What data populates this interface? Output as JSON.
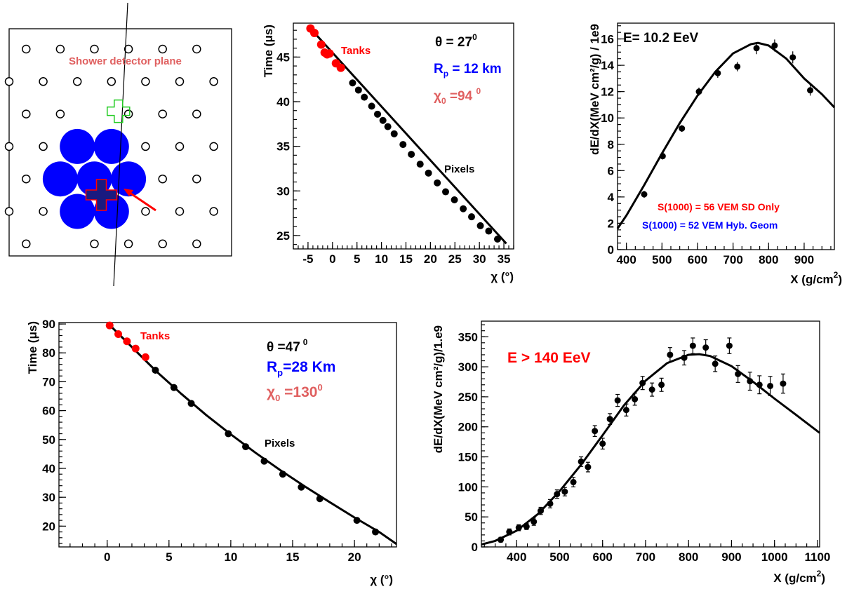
{
  "colors": {
    "tank": "#ff0000",
    "blue": "#0000ff",
    "salmon": "#e06060",
    "green": "#22cc22",
    "black": "#000000"
  },
  "chart_data": [
    {
      "type": "diagram",
      "label_plane": "Shower detector plane",
      "tanks_open": [
        [
          1,
          0
        ],
        [
          3,
          0
        ],
        [
          5,
          0
        ],
        [
          7,
          0
        ],
        [
          9,
          0
        ],
        [
          11,
          0
        ],
        [
          0,
          1
        ],
        [
          2,
          1
        ],
        [
          4,
          1
        ],
        [
          6,
          1
        ],
        [
          8,
          1
        ],
        [
          10,
          1
        ],
        [
          12,
          1
        ],
        [
          -1,
          2
        ],
        [
          1,
          2
        ],
        [
          3,
          2
        ],
        [
          7,
          2
        ],
        [
          9,
          2
        ],
        [
          11,
          2
        ],
        [
          0,
          3
        ],
        [
          2,
          3
        ],
        [
          8,
          3
        ],
        [
          10,
          3
        ],
        [
          12,
          3
        ],
        [
          -1,
          4
        ],
        [
          1,
          4
        ],
        [
          9,
          4
        ],
        [
          11,
          4
        ],
        [
          0,
          5
        ],
        [
          2,
          5
        ],
        [
          8,
          5
        ],
        [
          10,
          5
        ],
        [
          12,
          5
        ],
        [
          -1,
          6
        ],
        [
          1,
          6
        ],
        [
          5,
          6
        ],
        [
          7,
          6
        ],
        [
          9,
          6
        ],
        [
          11,
          6
        ]
      ],
      "tanks_hit": [
        [
          4,
          3
        ],
        [
          6,
          3
        ],
        [
          3,
          4
        ],
        [
          5,
          4
        ],
        [
          7,
          4
        ],
        [
          4,
          5
        ],
        [
          6,
          5
        ]
      ],
      "cross_green": [
        6,
        2
      ],
      "cross_core": [
        5,
        4.6
      ]
    },
    {
      "type": "scatter",
      "xlabel": "χ (°)",
      "ylabel": "Time (μs)",
      "xlim": [
        -8,
        37
      ],
      "ylim": [
        23.5,
        48.8
      ],
      "xticks": [
        -5,
        0,
        5,
        10,
        15,
        20,
        25,
        30,
        35
      ],
      "yticks": [
        25,
        30,
        35,
        40,
        45
      ],
      "series_tanks": {
        "name": "Tanks",
        "x": [
          -4.5,
          -3.7,
          -2.3,
          -1.6,
          -1.1,
          -0.6,
          0.7,
          1.7
        ],
        "y": [
          48.2,
          47.7,
          46.4,
          45.5,
          45.3,
          45.4,
          44.3,
          43.8
        ]
      },
      "series_pixels": {
        "name": "Pixels",
        "x": [
          4.1,
          5.3,
          6.5,
          8.0,
          9.2,
          10.3,
          11.3,
          12.6,
          14.4,
          16.1,
          17.9,
          19.6,
          21.4,
          23.1,
          24.9,
          26.7,
          28.4,
          30.2,
          31.9,
          33.7
        ],
        "y": [
          42.1,
          41.3,
          40.5,
          39.5,
          38.6,
          37.9,
          37.2,
          36.4,
          35.2,
          34.1,
          33.0,
          32.0,
          30.9,
          29.9,
          29.0,
          28.0,
          27.1,
          26.1,
          25.5,
          24.6
        ]
      },
      "fit": {
        "x": [
          -5,
          35.5
        ],
        "y": [
          48.5,
          24.1
        ]
      },
      "annotations": {
        "theta": "θ = 27",
        "theta_sup": "0",
        "rp": "R",
        "rp_sub": "p",
        "rp_val": " = 12 km",
        "chi": "χ",
        "chi_sub": "0",
        "chi_val": " =94 ",
        "chi_sup": "0"
      }
    },
    {
      "type": "scatter",
      "xlabel": "X (g/cm",
      "xlabel_sup": "2",
      "xlabel_end": ")",
      "ylabel": "dE/dX(MeV cm²/g) / 1e9",
      "xlim": [
        375,
        985
      ],
      "ylim": [
        0,
        17.2
      ],
      "xticks": [
        400,
        500,
        600,
        700,
        800,
        900
      ],
      "yticks": [
        0,
        2,
        4,
        6,
        8,
        10,
        12,
        14,
        16
      ],
      "x": [
        450,
        502,
        556,
        604,
        657,
        712,
        766,
        817,
        868,
        917
      ],
      "y": [
        4.2,
        7.1,
        9.2,
        12.0,
        13.4,
        13.9,
        15.3,
        15.5,
        14.6,
        12.1
      ],
      "yerr": [
        0.15,
        0.15,
        0.15,
        0.2,
        0.25,
        0.25,
        0.35,
        0.35,
        0.35,
        0.3
      ],
      "fit": {
        "x": [
          375,
          400,
          450,
          500,
          550,
          600,
          650,
          700,
          750,
          770,
          800,
          850,
          900,
          950,
          985
        ],
        "y": [
          1.6,
          2.6,
          4.9,
          7.3,
          9.6,
          11.7,
          13.5,
          14.9,
          15.6,
          15.7,
          15.5,
          14.5,
          13.0,
          11.8,
          10.8
        ]
      },
      "title": "E= 10.2 EeV",
      "note1": "S(1000) = 56 VEM  SD Only",
      "note2": "S(1000) = 52 VEM Hyb. Geom"
    },
    {
      "type": "scatter",
      "xlabel": "χ (°)",
      "ylabel": "Time (μs)",
      "xlim": [
        -3.9,
        23.4
      ],
      "ylim": [
        12.8,
        90.5
      ],
      "xticks": [
        0,
        5,
        10,
        15,
        20
      ],
      "yticks": [
        20,
        30,
        40,
        50,
        60,
        70,
        80,
        90
      ],
      "series_tanks": {
        "name": "Tanks",
        "x": [
          0.2,
          0.9,
          1.6,
          2.3,
          3.1
        ],
        "y": [
          89.5,
          86.5,
          84.0,
          81.5,
          78.5
        ]
      },
      "series_pixels": {
        "name": "Pixels",
        "x": [
          3.9,
          5.4,
          6.8,
          9.8,
          11.2,
          12.7,
          14.2,
          15.7,
          17.2,
          20.2,
          21.7
        ],
        "y": [
          74.0,
          68.0,
          62.5,
          52.0,
          47.5,
          42.5,
          38.0,
          33.5,
          29.5,
          22.0,
          18.0
        ]
      },
      "fit": {
        "x": [
          0,
          2,
          4,
          6,
          8,
          10,
          12,
          14,
          16,
          18,
          20,
          22,
          23.4
        ],
        "y": [
          90.5,
          82.0,
          73.5,
          65.8,
          58.5,
          51.8,
          45.4,
          39.4,
          33.7,
          28.3,
          23.0,
          18.0,
          13.8
        ]
      },
      "annotations": {
        "theta": "θ =47",
        "theta_sup": "0",
        "rp": "R",
        "rp_sub": "p",
        "rp_val": "=28 Km",
        "chi": "χ",
        "chi_sub": "0",
        "chi_val": " =130",
        "chi_sup": "0"
      }
    },
    {
      "type": "scatter",
      "xlabel": "X (g/cm",
      "xlabel_sup": "2",
      "xlabel_end": ")",
      "ylabel": "dE/dX(MeV cm²/g)/1.e9",
      "xlim": [
        318,
        1105
      ],
      "ylim": [
        0,
        376
      ],
      "xticks": [
        400,
        500,
        600,
        700,
        800,
        900,
        1000,
        1100
      ],
      "yticks": [
        0,
        50,
        100,
        150,
        200,
        250,
        300,
        350
      ],
      "x": [
        363,
        383,
        405,
        423,
        440,
        456,
        478,
        494,
        512,
        532,
        550,
        566,
        582,
        600,
        617,
        635,
        655,
        675,
        693,
        715,
        737,
        757,
        790,
        810,
        840,
        862,
        895,
        915,
        943,
        965,
        990,
        1020
      ],
      "y": [
        12,
        25,
        32,
        34,
        42,
        60,
        72,
        88,
        92,
        108,
        142,
        133,
        193,
        172,
        213,
        244,
        228,
        246,
        273,
        262,
        270,
        320,
        315,
        335,
        332,
        305,
        335,
        288,
        276,
        270,
        268,
        272
      ],
      "yerr": [
        4,
        5,
        5,
        5,
        6,
        6,
        7,
        7,
        7,
        8,
        8,
        8,
        9,
        9,
        9,
        10,
        10,
        10,
        11,
        11,
        11,
        12,
        12,
        13,
        13,
        13,
        13,
        14,
        15,
        15,
        16,
        16
      ],
      "fit": {
        "x": [
          318,
          350,
          400,
          450,
          500,
          550,
          600,
          650,
          700,
          750,
          800,
          825,
          850,
          900,
          950,
          1000,
          1050,
          1105
        ],
        "y": [
          4,
          10,
          27,
          55,
          93,
          137,
          186,
          236,
          277,
          306,
          320,
          321,
          318,
          301,
          275,
          247,
          220,
          190
        ]
      },
      "title": "E > 140 EeV"
    }
  ]
}
